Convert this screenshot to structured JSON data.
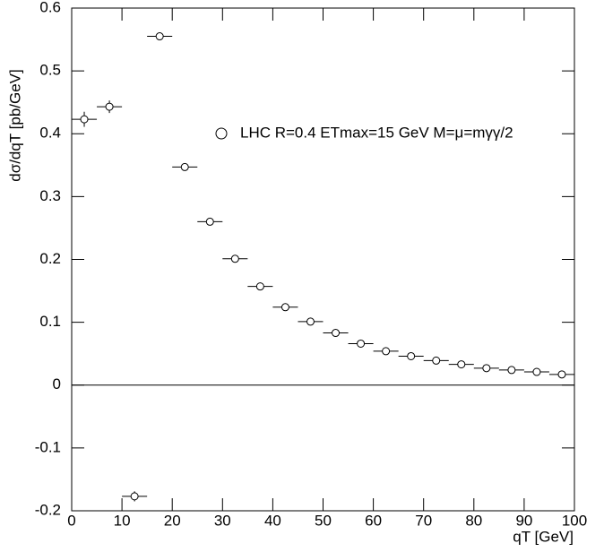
{
  "chart_data": {
    "type": "scatter",
    "x_label": "qT [GeV]",
    "y_label": "dσ/dqT [pb/GeV]",
    "xlim": [
      0,
      100
    ],
    "xticks": [
      0,
      10,
      20,
      30,
      40,
      50,
      60,
      70,
      80,
      90,
      100
    ],
    "ylim": [
      -0.2,
      0.6
    ],
    "yticks": [
      -0.2,
      -0.1,
      0,
      0.1,
      0.2,
      0.3,
      0.4,
      0.5,
      0.6
    ],
    "xerr": 2.5,
    "series": [
      {
        "name": "LHC R=0.4 ETmax=15 GeV M=μ=mγγ/2",
        "color": "#000000",
        "x": [
          2.5,
          7.5,
          12.5,
          17.5,
          22.5,
          27.5,
          32.5,
          37.5,
          42.5,
          47.5,
          52.5,
          57.5,
          62.5,
          67.5,
          72.5,
          77.5,
          82.5,
          87.5,
          92.5,
          97.5
        ],
        "values": [
          0.423,
          0.443,
          -0.177,
          0.555,
          0.347,
          0.26,
          0.201,
          0.157,
          0.124,
          0.101,
          0.083,
          0.066,
          0.054,
          0.046,
          0.039,
          0.033,
          0.027,
          0.024,
          0.021,
          0.017
        ],
        "errors": [
          0.012,
          0.01,
          0.008,
          0.003,
          0.002,
          0.002,
          0.002,
          0.002,
          0.002,
          0.002,
          0.002,
          0.002,
          0.002,
          0.002,
          0.002,
          0.002,
          0.002,
          0.002,
          0.002,
          0.002
        ]
      }
    ]
  }
}
